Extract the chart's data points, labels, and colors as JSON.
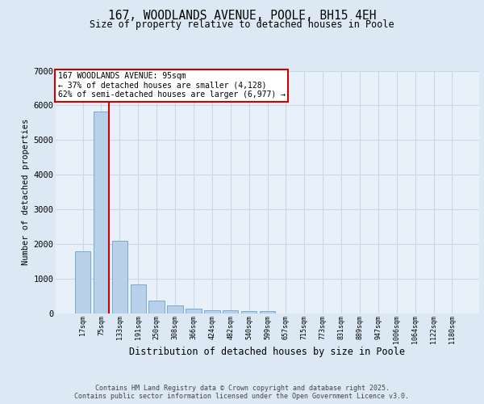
{
  "title_line1": "167, WOODLANDS AVENUE, POOLE, BH15 4EH",
  "title_line2": "Size of property relative to detached houses in Poole",
  "xlabel": "Distribution of detached houses by size in Poole",
  "ylabel": "Number of detached properties",
  "categories": [
    "17sqm",
    "75sqm",
    "133sqm",
    "191sqm",
    "250sqm",
    "308sqm",
    "366sqm",
    "424sqm",
    "482sqm",
    "540sqm",
    "599sqm",
    "657sqm",
    "715sqm",
    "773sqm",
    "831sqm",
    "889sqm",
    "947sqm",
    "1006sqm",
    "1064sqm",
    "1122sqm",
    "1180sqm"
  ],
  "values": [
    1780,
    5820,
    2080,
    820,
    360,
    220,
    130,
    90,
    90,
    70,
    50,
    0,
    0,
    0,
    0,
    0,
    0,
    0,
    0,
    0,
    0
  ],
  "bar_color": "#b8d0e8",
  "bar_edge_color": "#7aaacf",
  "highlight_color": "#cc0000",
  "annotation_title": "167 WOODLANDS AVENUE: 95sqm",
  "annotation_line2": "← 37% of detached houses are smaller (4,128)",
  "annotation_line3": "62% of semi-detached houses are larger (6,977) →",
  "annotation_box_color": "#cc0000",
  "ylim": [
    0,
    7000
  ],
  "yticks": [
    0,
    1000,
    2000,
    3000,
    4000,
    5000,
    6000,
    7000
  ],
  "grid_color": "#c5d8ec",
  "bg_color": "#dce9f5",
  "plot_bg_color": "#e8f1fa",
  "footer_line1": "Contains HM Land Registry data © Crown copyright and database right 2025.",
  "footer_line2": "Contains public sector information licensed under the Open Government Licence v3.0."
}
